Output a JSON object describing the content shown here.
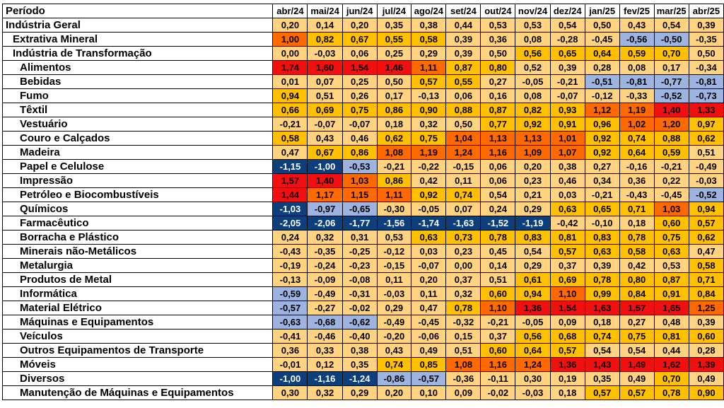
{
  "chart_data": {
    "type": "heatmap",
    "row_header": "Período",
    "columns": [
      "abr/24",
      "mai/24",
      "jun/24",
      "jul/24",
      "ago/24",
      "set/24",
      "out/24",
      "nov/24",
      "dez/24",
      "jan/25",
      "fev/25",
      "mar/25",
      "abr/25"
    ],
    "rows": [
      {
        "label": "Indústria Geral",
        "level": 0,
        "values": [
          0.2,
          0.14,
          0.2,
          0.35,
          0.38,
          0.44,
          0.53,
          0.53,
          0.54,
          0.5,
          0.43,
          0.54,
          0.39
        ]
      },
      {
        "label": "Extrativa Mineral",
        "level": 1,
        "values": [
          1.0,
          0.82,
          0.67,
          0.55,
          0.58,
          0.39,
          0.36,
          0.08,
          -0.28,
          -0.45,
          -0.56,
          -0.5,
          -0.35
        ]
      },
      {
        "label": "Indústria de Transformação",
        "level": 1,
        "values": [
          0.0,
          -0.03,
          0.06,
          0.25,
          0.29,
          0.39,
          0.5,
          0.56,
          0.65,
          0.64,
          0.59,
          0.7,
          0.5
        ]
      },
      {
        "label": "Alimentos",
        "level": 2,
        "values": [
          1.74,
          1.6,
          1.54,
          1.46,
          1.11,
          0.87,
          0.8,
          0.52,
          0.39,
          0.28,
          0.08,
          0.17,
          -0.34
        ]
      },
      {
        "label": "Bebidas",
        "level": 2,
        "values": [
          0.01,
          0.07,
          0.25,
          0.5,
          0.57,
          0.55,
          0.27,
          -0.05,
          -0.21,
          -0.51,
          -0.81,
          -0.77,
          -0.81
        ]
      },
      {
        "label": "Fumo",
        "level": 2,
        "values": [
          0.94,
          0.51,
          0.26,
          0.17,
          -0.13,
          0.06,
          0.16,
          0.08,
          -0.07,
          -0.12,
          -0.33,
          -0.52,
          -0.73
        ]
      },
      {
        "label": "Têxtil",
        "level": 2,
        "values": [
          0.66,
          0.69,
          0.75,
          0.86,
          0.9,
          0.88,
          0.87,
          0.82,
          0.93,
          1.12,
          1.19,
          1.4,
          1.33
        ]
      },
      {
        "label": "Vestuário",
        "level": 2,
        "values": [
          -0.21,
          -0.07,
          -0.07,
          0.18,
          0.32,
          0.5,
          0.77,
          0.92,
          0.91,
          0.96,
          1.02,
          1.2,
          0.97
        ]
      },
      {
        "label": "Couro e Calçados",
        "level": 2,
        "values": [
          0.58,
          0.43,
          0.46,
          0.62,
          0.75,
          1.04,
          1.13,
          1.13,
          1.01,
          0.92,
          0.74,
          0.88,
          0.62
        ]
      },
      {
        "label": "Madeira",
        "level": 2,
        "values": [
          0.47,
          0.67,
          0.86,
          1.08,
          1.19,
          1.24,
          1.16,
          1.09,
          1.07,
          0.92,
          0.64,
          0.59,
          0.51
        ]
      },
      {
        "label": "Papel e Celulose",
        "level": 2,
        "values": [
          -1.15,
          -1.0,
          -0.53,
          -0.21,
          -0.22,
          -0.15,
          0.06,
          0.2,
          0.38,
          0.27,
          -0.16,
          -0.21,
          -0.49
        ]
      },
      {
        "label": "Impressão",
        "level": 2,
        "values": [
          1.57,
          1.4,
          1.03,
          0.86,
          0.42,
          0.11,
          0.06,
          0.23,
          0.46,
          0.34,
          0.36,
          0.22,
          -0.03
        ]
      },
      {
        "label": "Petróleo e Biocombustíveis",
        "level": 2,
        "values": [
          1.44,
          1.17,
          1.15,
          1.11,
          0.92,
          0.74,
          0.54,
          0.21,
          0.03,
          -0.21,
          -0.43,
          -0.45,
          -0.52
        ]
      },
      {
        "label": "Químicos",
        "level": 2,
        "values": [
          -1.03,
          -0.97,
          -0.65,
          -0.3,
          -0.05,
          0.07,
          0.24,
          0.29,
          0.63,
          0.65,
          0.71,
          1.03,
          0.94
        ]
      },
      {
        "label": "Farmacêutico",
        "level": 2,
        "values": [
          -2.05,
          -2.06,
          -1.77,
          -1.56,
          -1.74,
          -1.63,
          -1.52,
          -1.19,
          -0.42,
          -0.1,
          0.18,
          0.6,
          0.57
        ]
      },
      {
        "label": "Borracha e Plástico",
        "level": 2,
        "values": [
          0.24,
          0.32,
          0.31,
          0.53,
          0.63,
          0.73,
          0.78,
          0.83,
          0.81,
          0.83,
          0.78,
          0.75,
          0.62
        ]
      },
      {
        "label": "Minerais não-Metálicos",
        "level": 2,
        "values": [
          -0.43,
          -0.35,
          -0.25,
          -0.12,
          0.03,
          0.23,
          0.45,
          0.54,
          0.57,
          0.63,
          0.58,
          0.63,
          0.47
        ]
      },
      {
        "label": "Metalurgia",
        "level": 2,
        "values": [
          -0.19,
          -0.24,
          -0.23,
          -0.15,
          -0.07,
          0.0,
          0.14,
          0.29,
          0.37,
          0.39,
          0.42,
          0.53,
          0.58
        ]
      },
      {
        "label": "Produtos de Metal",
        "level": 2,
        "values": [
          -0.13,
          -0.09,
          -0.08,
          0.11,
          0.2,
          0.37,
          0.51,
          0.61,
          0.69,
          0.78,
          0.8,
          0.87,
          0.71
        ]
      },
      {
        "label": "Informática",
        "level": 2,
        "values": [
          -0.59,
          -0.49,
          -0.31,
          -0.03,
          0.11,
          0.32,
          0.6,
          0.94,
          1.1,
          0.99,
          0.84,
          0.91,
          0.84
        ]
      },
      {
        "label": "Material Elétrico",
        "level": 2,
        "values": [
          -0.57,
          -0.27,
          -0.02,
          0.29,
          0.47,
          0.78,
          1.1,
          1.36,
          1.54,
          1.63,
          1.57,
          1.65,
          1.25
        ]
      },
      {
        "label": "Máquinas e Equipamentos",
        "level": 2,
        "values": [
          -0.63,
          -0.68,
          -0.62,
          -0.49,
          -0.45,
          -0.32,
          -0.21,
          -0.05,
          0.09,
          0.18,
          0.27,
          0.48,
          0.39
        ]
      },
      {
        "label": "Veículos",
        "level": 2,
        "values": [
          -0.41,
          -0.46,
          -0.4,
          -0.2,
          -0.06,
          0.15,
          0.37,
          0.56,
          0.68,
          0.74,
          0.75,
          0.81,
          0.6
        ]
      },
      {
        "label": "Outros Equipamentos de Transporte",
        "level": 2,
        "values": [
          0.36,
          0.33,
          0.38,
          0.43,
          0.49,
          0.51,
          0.6,
          0.64,
          0.57,
          0.54,
          0.54,
          0.44,
          0.28
        ]
      },
      {
        "label": "Móveis",
        "level": 2,
        "values": [
          -0.01,
          0.12,
          0.35,
          0.74,
          0.85,
          1.08,
          1.16,
          1.24,
          1.36,
          1.43,
          1.49,
          1.62,
          1.39
        ]
      },
      {
        "label": "Diversos",
        "level": 2,
        "values": [
          -1.0,
          -1.16,
          -1.24,
          -0.86,
          -0.57,
          -0.36,
          -0.11,
          0.3,
          0.19,
          0.35,
          0.49,
          0.7,
          0.49
        ]
      },
      {
        "label": "Manutenção de Máquinas e Equipamentos",
        "level": 2,
        "values": [
          0.3,
          0.32,
          0.29,
          0.2,
          0.1,
          0.09,
          -0.02,
          -0.03,
          0.18,
          0.57,
          0.57,
          0.78,
          0.9
        ]
      }
    ],
    "colors": {
      "very_negative": "#0d3f7c",
      "negative": "#9db3e0",
      "neutral": "#ffd380",
      "positive": "#ffc000",
      "strong_positive": "#ff6a00",
      "very_positive": "#f20f0f"
    }
  }
}
